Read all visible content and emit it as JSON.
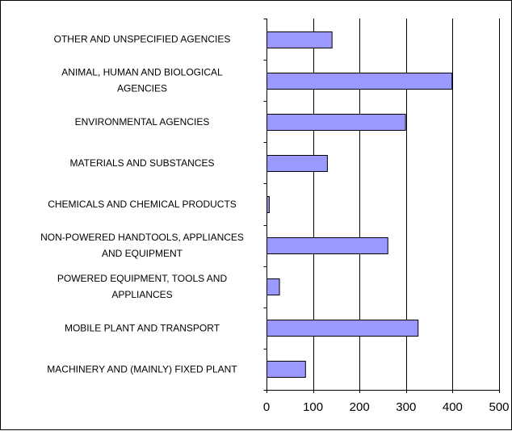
{
  "chart_data": {
    "type": "bar",
    "orientation": "horizontal",
    "title": "",
    "xlabel": "",
    "ylabel": "",
    "categories": [
      "OTHER AND UNSPECIFIED AGENCIES",
      "ANIMAL, HUMAN AND BIOLOGICAL AGENCIES",
      "ENVIRONMENTAL AGENCIES",
      "MATERIALS AND SUBSTANCES",
      "CHEMICALS AND CHEMICAL PRODUCTS",
      "NON-POWERED HANDTOOLS, APPLIANCES AND EQUIPMENT",
      "POWERED EQUIPMENT, TOOLS AND APPLIANCES",
      "MOBILE PLANT AND TRANSPORT",
      "MACHINERY AND (MAINLY) FIXED PLANT"
    ],
    "category_lines": [
      [
        "OTHER AND UNSPECIFIED AGENCIES"
      ],
      [
        "ANIMAL, HUMAN AND BIOLOGICAL",
        "AGENCIES"
      ],
      [
        "ENVIRONMENTAL AGENCIES"
      ],
      [
        "MATERIALS AND SUBSTANCES"
      ],
      [
        "CHEMICALS AND CHEMICAL PRODUCTS"
      ],
      [
        "NON-POWERED HANDTOOLS, APPLIANCES",
        "AND EQUIPMENT"
      ],
      [
        "POWERED EQUIPMENT, TOOLS AND",
        "APPLIANCES"
      ],
      [
        "MOBILE PLANT AND TRANSPORT"
      ],
      [
        "MACHINERY AND (MAINLY) FIXED PLANT"
      ]
    ],
    "values": [
      140,
      398,
      298,
      130,
      5,
      260,
      27,
      325,
      83
    ],
    "xlim": [
      0,
      500
    ],
    "xticks": [
      0,
      100,
      200,
      300,
      400,
      500
    ],
    "grid": true,
    "legend": "none",
    "bar_color": "#9999ff",
    "bar_outline": "#000000"
  }
}
